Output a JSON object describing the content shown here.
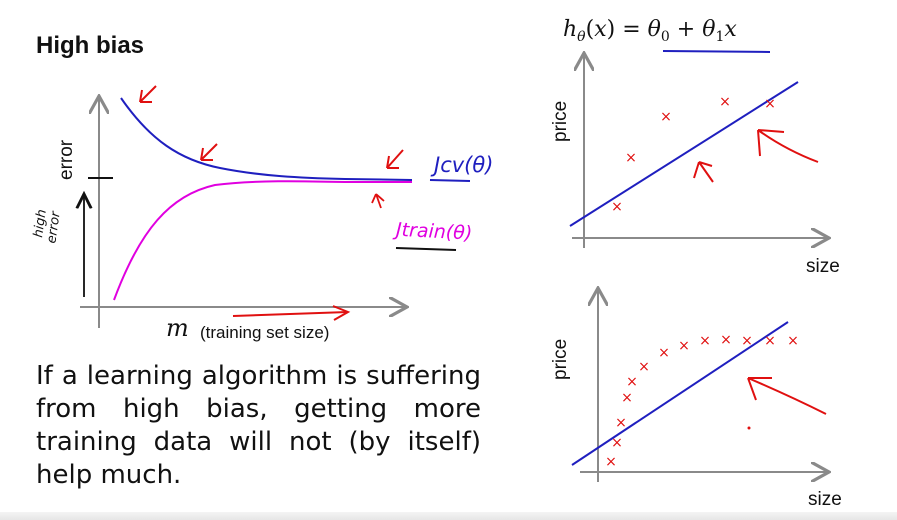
{
  "slide": {
    "title": "High bias",
    "body": "If a learning algorithm is suffering from high bias, getting more training data will not (by itself) help much."
  },
  "left_plot": {
    "y_label": "error",
    "x_label_var": "m",
    "x_label_text": "(training set size)",
    "handwritten_y_note": "high error",
    "legend_cv": "Jcv(θ)",
    "legend_train": "Jtrain(θ)",
    "colors": {
      "cv": "#1f1fbf",
      "train": "#e000e0",
      "annotation": "#e01010",
      "axis": "#8a8a8a"
    }
  },
  "hypothesis": "hθ(x) = θ0 + θ1x",
  "top_plot": {
    "y_label": "price",
    "x_label": "size"
  },
  "bottom_plot": {
    "y_label": "price",
    "x_label": "size"
  }
}
